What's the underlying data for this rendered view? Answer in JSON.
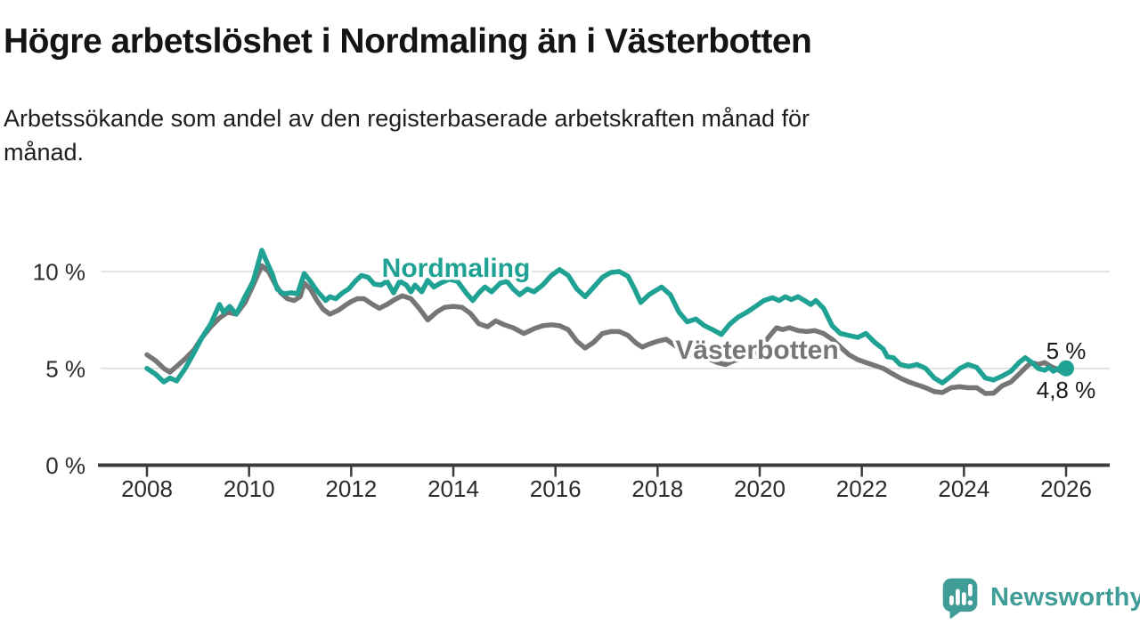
{
  "header": {
    "title": "Högre arbetslöshet i Nordmaling än i Västerbotten",
    "subtitle_lines": [
      "Arbetssökande som andel av den registerbaserade arbetskraften månad för",
      "månad."
    ]
  },
  "footer": {
    "brand": "Newsworthy",
    "logo_icon": "speech-bubble-bar-chart-exclamation"
  },
  "colors": {
    "nordmaling_teal": "#1fa294",
    "vasterbotten_gray": "#767676",
    "logo_teal": "#3f9c96",
    "annotation_text": "#1a1a1a",
    "axis": "#3c3c3c",
    "gridline": "#dbdbdb"
  },
  "chart_data": {
    "type": "line",
    "title": "Högre arbetslöshet i Nordmaling än i Västerbotten",
    "xlabel": "",
    "ylabel": "Arbetssökande som andel av den registerbaserade arbetskraften",
    "x_unit": "year (monthly data)",
    "y_unit": "%",
    "xlim": [
      2007.9,
      2026.8
    ],
    "ylim": [
      0,
      11.5
    ],
    "grid": "horizontal",
    "legend_position": "inline-labels",
    "x_axis": {
      "ticks": [
        {
          "value": 2008,
          "label": "2008"
        },
        {
          "value": 2010,
          "label": "2010"
        },
        {
          "value": 2012,
          "label": "2012"
        },
        {
          "value": 2014,
          "label": "2014"
        },
        {
          "value": 2016,
          "label": "2016"
        },
        {
          "value": 2018,
          "label": "2018"
        },
        {
          "value": 2020,
          "label": "2020"
        },
        {
          "value": 2022,
          "label": "2022"
        },
        {
          "value": 2024,
          "label": "2024"
        },
        {
          "value": 2026,
          "label": "2026"
        }
      ]
    },
    "y_axis": {
      "ticks": [
        {
          "value": 0,
          "label": "0 %"
        },
        {
          "value": 5,
          "label": "5 %"
        },
        {
          "value": 10,
          "label": "10 %"
        }
      ]
    },
    "series": [
      {
        "name": "Nordmaling",
        "color": "#1fa294",
        "end_label": "5 %",
        "end_value": 5.0,
        "end_dot": true,
        "points": [
          [
            2008.0,
            5.0
          ],
          [
            2008.17,
            4.7
          ],
          [
            2008.33,
            4.3
          ],
          [
            2008.45,
            4.5
          ],
          [
            2008.58,
            4.35
          ],
          [
            2008.75,
            5.0
          ],
          [
            2008.92,
            5.8
          ],
          [
            2009.08,
            6.6
          ],
          [
            2009.25,
            7.3
          ],
          [
            2009.42,
            8.3
          ],
          [
            2009.5,
            7.9
          ],
          [
            2009.62,
            8.2
          ],
          [
            2009.75,
            7.8
          ],
          [
            2009.92,
            8.7
          ],
          [
            2010.08,
            9.5
          ],
          [
            2010.25,
            11.1
          ],
          [
            2010.33,
            10.6
          ],
          [
            2010.45,
            9.9
          ],
          [
            2010.55,
            9.1
          ],
          [
            2010.67,
            8.85
          ],
          [
            2010.83,
            8.9
          ],
          [
            2010.95,
            8.85
          ],
          [
            2011.08,
            9.9
          ],
          [
            2011.2,
            9.5
          ],
          [
            2011.33,
            9.0
          ],
          [
            2011.5,
            8.5
          ],
          [
            2011.58,
            8.7
          ],
          [
            2011.7,
            8.6
          ],
          [
            2011.83,
            8.9
          ],
          [
            2011.95,
            9.1
          ],
          [
            2012.08,
            9.5
          ],
          [
            2012.2,
            9.8
          ],
          [
            2012.33,
            9.7
          ],
          [
            2012.45,
            9.35
          ],
          [
            2012.58,
            9.3
          ],
          [
            2012.7,
            9.5
          ],
          [
            2012.83,
            8.9
          ],
          [
            2012.95,
            9.5
          ],
          [
            2013.08,
            9.3
          ],
          [
            2013.17,
            8.95
          ],
          [
            2013.25,
            9.3
          ],
          [
            2013.38,
            8.95
          ],
          [
            2013.5,
            9.55
          ],
          [
            2013.62,
            9.2
          ],
          [
            2013.75,
            9.4
          ],
          [
            2013.92,
            9.6
          ],
          [
            2014.08,
            9.5
          ],
          [
            2014.25,
            8.9
          ],
          [
            2014.38,
            8.5
          ],
          [
            2014.5,
            8.9
          ],
          [
            2014.62,
            9.2
          ],
          [
            2014.75,
            8.95
          ],
          [
            2014.92,
            9.4
          ],
          [
            2015.05,
            9.5
          ],
          [
            2015.17,
            9.1
          ],
          [
            2015.3,
            8.8
          ],
          [
            2015.45,
            9.1
          ],
          [
            2015.58,
            8.95
          ],
          [
            2015.75,
            9.3
          ],
          [
            2015.92,
            9.8
          ],
          [
            2016.08,
            10.1
          ],
          [
            2016.25,
            9.8
          ],
          [
            2016.42,
            9.1
          ],
          [
            2016.58,
            8.7
          ],
          [
            2016.75,
            9.2
          ],
          [
            2016.92,
            9.7
          ],
          [
            2017.08,
            9.95
          ],
          [
            2017.25,
            10.0
          ],
          [
            2017.42,
            9.75
          ],
          [
            2017.55,
            9.1
          ],
          [
            2017.67,
            8.4
          ],
          [
            2017.83,
            8.8
          ],
          [
            2017.95,
            9.0
          ],
          [
            2018.08,
            9.2
          ],
          [
            2018.25,
            8.8
          ],
          [
            2018.42,
            7.9
          ],
          [
            2018.58,
            7.4
          ],
          [
            2018.75,
            7.55
          ],
          [
            2018.92,
            7.2
          ],
          [
            2019.08,
            7.0
          ],
          [
            2019.25,
            6.75
          ],
          [
            2019.42,
            7.3
          ],
          [
            2019.58,
            7.65
          ],
          [
            2019.75,
            7.9
          ],
          [
            2019.92,
            8.2
          ],
          [
            2020.08,
            8.5
          ],
          [
            2020.25,
            8.65
          ],
          [
            2020.38,
            8.5
          ],
          [
            2020.5,
            8.7
          ],
          [
            2020.62,
            8.55
          ],
          [
            2020.75,
            8.7
          ],
          [
            2020.88,
            8.5
          ],
          [
            2021.0,
            8.3
          ],
          [
            2021.1,
            8.5
          ],
          [
            2021.25,
            8.1
          ],
          [
            2021.42,
            7.2
          ],
          [
            2021.58,
            6.8
          ],
          [
            2021.75,
            6.7
          ],
          [
            2021.92,
            6.6
          ],
          [
            2022.08,
            6.8
          ],
          [
            2022.25,
            6.35
          ],
          [
            2022.42,
            6.0
          ],
          [
            2022.5,
            5.6
          ],
          [
            2022.62,
            5.55
          ],
          [
            2022.75,
            5.2
          ],
          [
            2022.92,
            5.1
          ],
          [
            2023.08,
            5.2
          ],
          [
            2023.25,
            5.0
          ],
          [
            2023.42,
            4.5
          ],
          [
            2023.58,
            4.25
          ],
          [
            2023.75,
            4.6
          ],
          [
            2023.92,
            5.0
          ],
          [
            2024.08,
            5.2
          ],
          [
            2024.25,
            5.05
          ],
          [
            2024.42,
            4.5
          ],
          [
            2024.58,
            4.4
          ],
          [
            2024.75,
            4.6
          ],
          [
            2024.92,
            4.85
          ],
          [
            2025.08,
            5.3
          ],
          [
            2025.2,
            5.55
          ],
          [
            2025.33,
            5.3
          ],
          [
            2025.45,
            5.0
          ],
          [
            2025.58,
            4.9
          ],
          [
            2025.67,
            5.05
          ],
          [
            2025.75,
            4.85
          ],
          [
            2025.85,
            5.0
          ],
          [
            2025.92,
            4.85
          ],
          [
            2026.0,
            5.0
          ]
        ]
      },
      {
        "name": "Västerbotten",
        "color": "#767676",
        "end_label": "4,8 %",
        "end_value": 4.8,
        "end_dot": false,
        "points": [
          [
            2008.0,
            5.7
          ],
          [
            2008.17,
            5.4
          ],
          [
            2008.33,
            5.0
          ],
          [
            2008.45,
            4.8
          ],
          [
            2008.58,
            5.1
          ],
          [
            2008.75,
            5.5
          ],
          [
            2008.92,
            5.95
          ],
          [
            2009.08,
            6.6
          ],
          [
            2009.25,
            7.15
          ],
          [
            2009.42,
            7.6
          ],
          [
            2009.58,
            7.9
          ],
          [
            2009.75,
            7.8
          ],
          [
            2009.92,
            8.4
          ],
          [
            2010.08,
            9.3
          ],
          [
            2010.25,
            10.3
          ],
          [
            2010.38,
            10.0
          ],
          [
            2010.5,
            9.4
          ],
          [
            2010.62,
            8.9
          ],
          [
            2010.75,
            8.6
          ],
          [
            2010.88,
            8.5
          ],
          [
            2011.0,
            8.7
          ],
          [
            2011.08,
            9.4
          ],
          [
            2011.2,
            9.1
          ],
          [
            2011.33,
            8.5
          ],
          [
            2011.45,
            8.05
          ],
          [
            2011.58,
            7.8
          ],
          [
            2011.75,
            8.0
          ],
          [
            2011.88,
            8.25
          ],
          [
            2012.0,
            8.45
          ],
          [
            2012.12,
            8.6
          ],
          [
            2012.25,
            8.6
          ],
          [
            2012.42,
            8.3
          ],
          [
            2012.55,
            8.1
          ],
          [
            2012.7,
            8.3
          ],
          [
            2012.85,
            8.55
          ],
          [
            2013.0,
            8.75
          ],
          [
            2013.17,
            8.6
          ],
          [
            2013.33,
            8.1
          ],
          [
            2013.5,
            7.5
          ],
          [
            2013.67,
            7.9
          ],
          [
            2013.83,
            8.15
          ],
          [
            2014.0,
            8.2
          ],
          [
            2014.17,
            8.15
          ],
          [
            2014.33,
            7.85
          ],
          [
            2014.5,
            7.3
          ],
          [
            2014.67,
            7.15
          ],
          [
            2014.83,
            7.45
          ],
          [
            2015.0,
            7.25
          ],
          [
            2015.17,
            7.1
          ],
          [
            2015.38,
            6.8
          ],
          [
            2015.58,
            7.05
          ],
          [
            2015.75,
            7.2
          ],
          [
            2015.92,
            7.25
          ],
          [
            2016.08,
            7.2
          ],
          [
            2016.25,
            7.0
          ],
          [
            2016.42,
            6.4
          ],
          [
            2016.58,
            6.05
          ],
          [
            2016.75,
            6.35
          ],
          [
            2016.92,
            6.8
          ],
          [
            2017.08,
            6.9
          ],
          [
            2017.25,
            6.9
          ],
          [
            2017.42,
            6.7
          ],
          [
            2017.58,
            6.3
          ],
          [
            2017.7,
            6.1
          ],
          [
            2017.83,
            6.25
          ],
          [
            2018.0,
            6.4
          ],
          [
            2018.17,
            6.5
          ],
          [
            2018.33,
            6.2
          ],
          [
            2018.5,
            5.9
          ],
          [
            2018.67,
            5.7
          ],
          [
            2018.83,
            5.6
          ],
          [
            2019.0,
            5.5
          ],
          [
            2019.17,
            5.3
          ],
          [
            2019.33,
            5.2
          ],
          [
            2019.5,
            5.4
          ],
          [
            2019.67,
            5.5
          ],
          [
            2019.83,
            5.7
          ],
          [
            2020.0,
            5.95
          ],
          [
            2020.17,
            6.6
          ],
          [
            2020.33,
            7.1
          ],
          [
            2020.45,
            7.0
          ],
          [
            2020.58,
            7.1
          ],
          [
            2020.75,
            6.95
          ],
          [
            2020.92,
            6.9
          ],
          [
            2021.08,
            6.95
          ],
          [
            2021.25,
            6.8
          ],
          [
            2021.42,
            6.5
          ],
          [
            2021.58,
            6.1
          ],
          [
            2021.75,
            5.7
          ],
          [
            2021.92,
            5.45
          ],
          [
            2022.08,
            5.3
          ],
          [
            2022.25,
            5.15
          ],
          [
            2022.42,
            5.0
          ],
          [
            2022.58,
            4.75
          ],
          [
            2022.75,
            4.5
          ],
          [
            2022.92,
            4.3
          ],
          [
            2023.08,
            4.15
          ],
          [
            2023.25,
            4.0
          ],
          [
            2023.42,
            3.8
          ],
          [
            2023.58,
            3.75
          ],
          [
            2023.75,
            4.0
          ],
          [
            2023.92,
            4.05
          ],
          [
            2024.08,
            4.0
          ],
          [
            2024.25,
            4.0
          ],
          [
            2024.42,
            3.7
          ],
          [
            2024.58,
            3.72
          ],
          [
            2024.75,
            4.1
          ],
          [
            2024.92,
            4.3
          ],
          [
            2025.08,
            4.7
          ],
          [
            2025.25,
            5.15
          ],
          [
            2025.33,
            5.3
          ],
          [
            2025.45,
            5.2
          ],
          [
            2025.58,
            5.3
          ],
          [
            2025.7,
            5.1
          ],
          [
            2025.83,
            4.95
          ],
          [
            2025.92,
            4.8
          ],
          [
            2026.0,
            4.8
          ]
        ]
      }
    ]
  }
}
